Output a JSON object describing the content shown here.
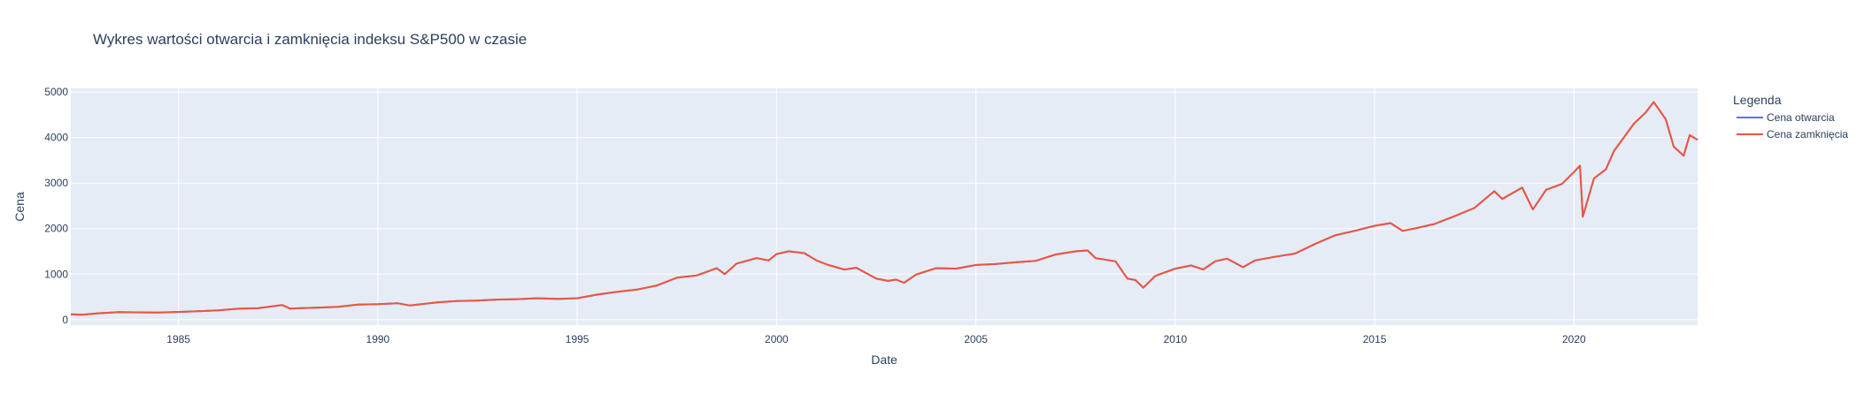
{
  "chart_data": {
    "type": "line",
    "title": "Wykres wartości otwarcia i zamknięcia indeksu S&P500 w czasie",
    "xlabel": "Date",
    "ylabel": "Cena",
    "xlim": [
      1982.3,
      2023.1
    ],
    "ylim": [
      -120,
      5080
    ],
    "x_ticks": [
      1985,
      1990,
      1995,
      2000,
      2005,
      2010,
      2015,
      2020
    ],
    "x_tick_labels": [
      "1985",
      "1990",
      "1995",
      "2000",
      "2005",
      "2010",
      "2015",
      "2020"
    ],
    "y_ticks": [
      0,
      1000,
      2000,
      3000,
      4000,
      5000
    ],
    "y_tick_labels": [
      "0",
      "1000",
      "2000",
      "3000",
      "4000",
      "5000"
    ],
    "grid": true,
    "legend": {
      "title": "Legenda",
      "placement": "right",
      "entries": [
        "Cena otwarcia",
        "Cena zamknięcia"
      ]
    },
    "colors": {
      "plot_background": "#e5ecf6",
      "grid": "#ffffff",
      "text": "#2a3f5f"
    },
    "series": [
      {
        "name": "Cena otwarcia",
        "color": "#636efa",
        "x": [
          1982.3,
          1982.6,
          1983.0,
          1983.5,
          1984.0,
          1984.5,
          1985.0,
          1985.5,
          1986.0,
          1986.5,
          1987.0,
          1987.6,
          1987.8,
          1988.0,
          1988.5,
          1989.0,
          1989.5,
          1990.0,
          1990.5,
          1990.8,
          1991.0,
          1991.5,
          1992.0,
          1992.5,
          1993.0,
          1993.5,
          1994.0,
          1994.5,
          1995.0,
          1995.5,
          1996.0,
          1996.5,
          1997.0,
          1997.5,
          1998.0,
          1998.5,
          1998.7,
          1999.0,
          1999.5,
          1999.8,
          2000.0,
          2000.3,
          2000.7,
          2001.0,
          2001.3,
          2001.7,
          2002.0,
          2002.5,
          2002.8,
          2003.0,
          2003.2,
          2003.5,
          2004.0,
          2004.5,
          2005.0,
          2005.5,
          2006.0,
          2006.5,
          2007.0,
          2007.5,
          2007.8,
          2008.0,
          2008.5,
          2008.8,
          2009.0,
          2009.2,
          2009.5,
          2010.0,
          2010.4,
          2010.7,
          2011.0,
          2011.3,
          2011.7,
          2012.0,
          2012.5,
          2013.0,
          2013.5,
          2014.0,
          2014.5,
          2015.0,
          2015.4,
          2015.7,
          2016.0,
          2016.5,
          2017.0,
          2017.5,
          2018.0,
          2018.2,
          2018.7,
          2018.97,
          2019.3,
          2019.7,
          2020.0,
          2020.15,
          2020.22,
          2020.5,
          2020.8,
          2021.0,
          2021.5,
          2021.8,
          2022.0,
          2022.3,
          2022.5,
          2022.75,
          2022.9,
          2023.1
        ],
        "y": [
          115,
          108,
          140,
          165,
          160,
          155,
          170,
          185,
          205,
          240,
          250,
          320,
          240,
          250,
          265,
          280,
          330,
          340,
          360,
          310,
          330,
          380,
          410,
          420,
          440,
          450,
          470,
          455,
          470,
          550,
          610,
          660,
          750,
          920,
          970,
          1130,
          1000,
          1230,
          1350,
          1300,
          1440,
          1500,
          1460,
          1300,
          1200,
          1100,
          1140,
          900,
          850,
          880,
          810,
          990,
          1130,
          1120,
          1200,
          1220,
          1260,
          1290,
          1430,
          1500,
          1520,
          1350,
          1280,
          900,
          870,
          700,
          960,
          1120,
          1190,
          1100,
          1280,
          1340,
          1150,
          1300,
          1380,
          1450,
          1660,
          1850,
          1950,
          2060,
          2120,
          1950,
          2000,
          2100,
          2270,
          2450,
          2820,
          2650,
          2900,
          2420,
          2850,
          2980,
          3240,
          3380,
          2260,
          3100,
          3300,
          3700,
          4300,
          4550,
          4780,
          4400,
          3800,
          3600,
          4050,
          3950
        ]
      },
      {
        "name": "Cena zamknięcia",
        "color": "#ef553b",
        "x": [
          1982.3,
          1982.6,
          1983.0,
          1983.5,
          1984.0,
          1984.5,
          1985.0,
          1985.5,
          1986.0,
          1986.5,
          1987.0,
          1987.6,
          1987.8,
          1988.0,
          1988.5,
          1989.0,
          1989.5,
          1990.0,
          1990.5,
          1990.8,
          1991.0,
          1991.5,
          1992.0,
          1992.5,
          1993.0,
          1993.5,
          1994.0,
          1994.5,
          1995.0,
          1995.5,
          1996.0,
          1996.5,
          1997.0,
          1997.5,
          1998.0,
          1998.5,
          1998.7,
          1999.0,
          1999.5,
          1999.8,
          2000.0,
          2000.3,
          2000.7,
          2001.0,
          2001.3,
          2001.7,
          2002.0,
          2002.5,
          2002.8,
          2003.0,
          2003.2,
          2003.5,
          2004.0,
          2004.5,
          2005.0,
          2005.5,
          2006.0,
          2006.5,
          2007.0,
          2007.5,
          2007.8,
          2008.0,
          2008.5,
          2008.8,
          2009.0,
          2009.2,
          2009.5,
          2010.0,
          2010.4,
          2010.7,
          2011.0,
          2011.3,
          2011.7,
          2012.0,
          2012.5,
          2013.0,
          2013.5,
          2014.0,
          2014.5,
          2015.0,
          2015.4,
          2015.7,
          2016.0,
          2016.5,
          2017.0,
          2017.5,
          2018.0,
          2018.2,
          2018.7,
          2018.97,
          2019.3,
          2019.7,
          2020.0,
          2020.15,
          2020.22,
          2020.5,
          2020.8,
          2021.0,
          2021.5,
          2021.8,
          2022.0,
          2022.3,
          2022.5,
          2022.75,
          2022.9,
          2023.1
        ],
        "y": [
          117,
          110,
          142,
          166,
          162,
          156,
          171,
          186,
          206,
          241,
          252,
          322,
          242,
          251,
          266,
          282,
          332,
          341,
          361,
          312,
          332,
          382,
          411,
          421,
          442,
          451,
          471,
          456,
          472,
          552,
          612,
          662,
          752,
          922,
          972,
          1132,
          1002,
          1232,
          1352,
          1302,
          1442,
          1502,
          1462,
          1302,
          1202,
          1102,
          1142,
          902,
          852,
          882,
          812,
          992,
          1132,
          1122,
          1202,
          1222,
          1262,
          1292,
          1432,
          1502,
          1522,
          1352,
          1282,
          902,
          872,
          702,
          962,
          1122,
          1192,
          1102,
          1282,
          1342,
          1152,
          1302,
          1382,
          1452,
          1662,
          1852,
          1952,
          2062,
          2122,
          1952,
          2002,
          2102,
          2272,
          2452,
          2822,
          2652,
          2902,
          2422,
          2852,
          2982,
          3242,
          3382,
          2262,
          3102,
          3302,
          3702,
          4302,
          4552,
          4782,
          4402,
          3802,
          3602,
          4052,
          3952
        ]
      }
    ]
  }
}
